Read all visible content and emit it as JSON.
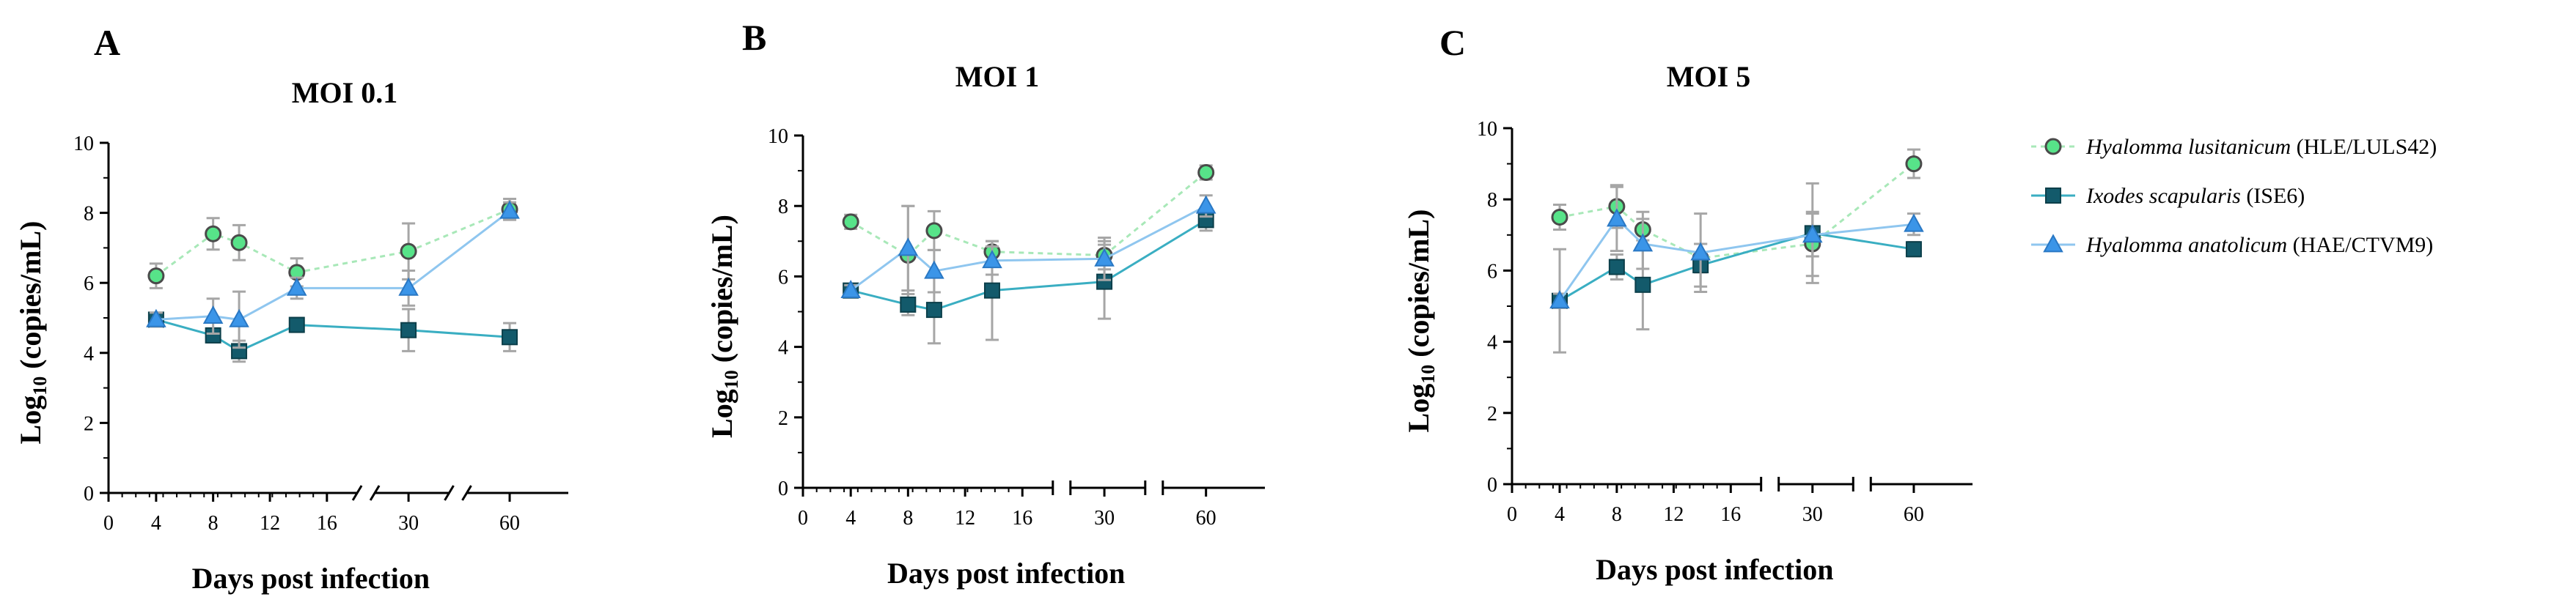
{
  "chart_data": [
    {
      "type": "line",
      "panel": "A",
      "title": "MOI 0.1",
      "ylabel_prefix": "Log",
      "ylabel_sub": "10",
      "ylabel_suffix": " (copies/mL)",
      "xlabel": "Days post infection",
      "ylim": [
        0,
        10
      ],
      "yticks": [
        "0",
        "2",
        "4",
        "6",
        "8",
        "10"
      ],
      "xticks": [
        "0",
        "4",
        "8",
        "12",
        "16",
        "30",
        "60"
      ],
      "series": [
        {
          "name": "Hyalomma lusitanicum (HLE/LULS42)",
          "x": [
            "4",
            "8",
            "10",
            "14",
            "30",
            "60"
          ],
          "values": [
            6.2,
            7.4,
            7.15,
            6.3,
            6.9,
            8.1
          ],
          "err": [
            0.35,
            0.45,
            0.5,
            0.4,
            0.8,
            0.3
          ]
        },
        {
          "name": "Ixodes scapularis (ISE6)",
          "x": [
            "4",
            "8",
            "10",
            "14",
            "30",
            "60"
          ],
          "values": [
            4.95,
            4.5,
            4.05,
            4.8,
            4.65,
            4.45
          ],
          "err": [
            0.15,
            0.2,
            0.3,
            0.2,
            0.6,
            0.4
          ]
        },
        {
          "name": "Hyalomma anatolicum (HAE/CTVM9)",
          "x": [
            "4",
            "8",
            "10",
            "14",
            "30",
            "60"
          ],
          "values": [
            4.95,
            5.05,
            4.95,
            5.85,
            5.85,
            8.05
          ],
          "err": [
            0.2,
            0.5,
            0.8,
            0.3,
            0.5,
            0.25
          ]
        }
      ]
    },
    {
      "type": "line",
      "panel": "B",
      "title": "MOI 1",
      "ylabel_prefix": "Log",
      "ylabel_sub": "10",
      "ylabel_suffix": " (copies/mL)",
      "xlabel": "Days post infection",
      "ylim": [
        0,
        10
      ],
      "yticks": [
        "0",
        "2",
        "4",
        "6",
        "8",
        "10"
      ],
      "xticks": [
        "0",
        "4",
        "8",
        "12",
        "16",
        "30",
        "60"
      ],
      "series": [
        {
          "name": "Hyalomma lusitanicum (HLE/LULS42)",
          "x": [
            "4",
            "8",
            "10",
            "14",
            "30",
            "60"
          ],
          "values": [
            7.55,
            6.6,
            7.3,
            6.7,
            6.6,
            8.95
          ],
          "err": [
            0.2,
            1.4,
            0.55,
            0.3,
            0.4,
            0.2
          ]
        },
        {
          "name": "Ixodes scapularis (ISE6)",
          "x": [
            "4",
            "8",
            "10",
            "14",
            "30",
            "60"
          ],
          "values": [
            5.6,
            5.2,
            5.05,
            5.6,
            5.85,
            7.6
          ],
          "err": [
            0.15,
            0.3,
            0.95,
            1.4,
            1.05,
            0.3
          ]
        },
        {
          "name": "Hyalomma anatolicum (HAE/CTVM9)",
          "x": [
            "4",
            "8",
            "10",
            "14",
            "30",
            "60"
          ],
          "values": [
            5.6,
            6.8,
            6.15,
            6.45,
            6.5,
            8.0
          ],
          "err": [
            0.15,
            1.2,
            0.6,
            0.4,
            0.6,
            0.3
          ]
        }
      ]
    },
    {
      "type": "line",
      "panel": "C",
      "title": "MOI 5",
      "ylabel_prefix": "Log",
      "ylabel_sub": "10",
      "ylabel_suffix": " (copies/mL)",
      "xlabel": "Days post infection",
      "ylim": [
        0,
        10
      ],
      "yticks": [
        "0",
        "2",
        "4",
        "6",
        "8",
        "10"
      ],
      "xticks": [
        "0",
        "4",
        "8",
        "12",
        "16",
        "30",
        "60"
      ],
      "series": [
        {
          "name": "Hyalomma lusitanicum (HLE/LULS42)",
          "x": [
            "4",
            "8",
            "10",
            "14",
            "30",
            "60"
          ],
          "values": [
            7.5,
            7.8,
            7.15,
            6.35,
            6.75,
            9.0
          ],
          "err": [
            0.35,
            0.6,
            0.5,
            0.4,
            0.9,
            0.4
          ]
        },
        {
          "name": "Ixodes scapularis (ISE6)",
          "x": [
            "4",
            "8",
            "10",
            "14",
            "30",
            "60"
          ],
          "values": [
            5.15,
            6.1,
            5.6,
            6.15,
            7.05,
            6.6
          ],
          "err": [
            1.45,
            0.35,
            1.25,
            0.6,
            1.4,
            0.2
          ]
        },
        {
          "name": "Hyalomma anatolicum (HAE/CTVM9)",
          "x": [
            "4",
            "8",
            "10",
            "14",
            "30",
            "60"
          ],
          "values": [
            5.15,
            7.45,
            6.75,
            6.5,
            7.0,
            7.3
          ],
          "err": [
            0.2,
            0.9,
            0.7,
            1.1,
            0.6,
            0.3
          ]
        }
      ]
    }
  ],
  "legend": [
    {
      "species": "Hyalomma lusitanicum",
      "code": " (HLE/LULS42)",
      "color": "#57e389",
      "line_color": "#a8e8b8",
      "marker": "circle"
    },
    {
      "species": "Ixodes scapularis",
      "code": " (ISE6)",
      "color": "#135a6b",
      "line_color": "#3aaec2",
      "marker": "square"
    },
    {
      "species": "Hyalomma anatolicum",
      "code": " (HAE/CTVM9)",
      "color": "#3b95e8",
      "line_color": "#8fc6ef",
      "marker": "triangle"
    }
  ]
}
